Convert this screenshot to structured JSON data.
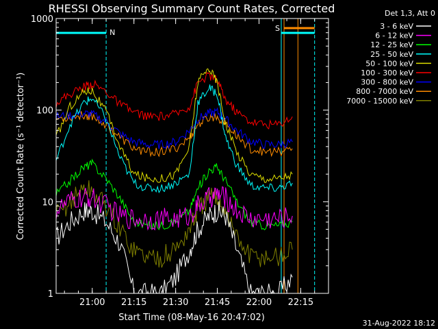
{
  "chart_data": {
    "type": "line",
    "title": "RHESSI Observing Summary Count Rates, Corrected",
    "xlabel": "Start Time (08-May-16 20:47:02)",
    "ylabel": "Corrected Count Rate (s⁻¹ detector⁻¹)",
    "x_tick_labels": [
      "21:00",
      "21:15",
      "21:30",
      "21:45",
      "22:00",
      "22:15"
    ],
    "y_tick_labels": [
      "1",
      "10",
      "100",
      "1000"
    ],
    "ylim": [
      1,
      1000
    ],
    "yscale": "log",
    "xlim": [
      "20:47",
      "22:25"
    ],
    "timestamp": "31-Aug-2022 18:12",
    "legend_header": "Det 1,3, Att 0",
    "legend_position": "right, outside plot",
    "annotations": [
      {
        "label": "N",
        "color": "#00ffff"
      },
      {
        "label": "S",
        "color": "#ff8c00"
      }
    ],
    "x_times": [
      "20:47",
      "20:52",
      "20:57",
      "21:00",
      "21:05",
      "21:10",
      "21:15",
      "21:20",
      "21:25",
      "21:30",
      "21:35",
      "21:38",
      "21:42",
      "21:45",
      "21:48",
      "21:52",
      "21:57",
      "22:02",
      "22:07",
      "22:12"
    ],
    "series": [
      {
        "name": "3 - 6 keV",
        "color": "#ffffff",
        "values": [
          4,
          6,
          8,
          8,
          6,
          3.5,
          1,
          1,
          1,
          1.5,
          3,
          5,
          7,
          8,
          7,
          3,
          1,
          1,
          1,
          1.5
        ]
      },
      {
        "name": "6 - 12 keV",
        "color": "#ff00ff",
        "values": [
          8,
          10,
          11,
          11,
          9,
          7,
          6.5,
          6.5,
          6.5,
          6.5,
          7,
          9,
          11,
          12,
          11,
          8,
          6.5,
          6.5,
          6.5,
          7
        ]
      },
      {
        "name": "12 - 25 keV",
        "color": "#00ff00",
        "values": [
          12,
          17,
          24,
          26,
          18,
          11,
          6,
          5.5,
          5.5,
          6,
          8,
          14,
          22,
          24,
          17,
          10,
          6,
          5.5,
          5.5,
          6
        ]
      },
      {
        "name": "25 - 50 keV",
        "color": "#00ffff",
        "values": [
          28,
          70,
          120,
          135,
          80,
          30,
          16,
          14,
          14,
          16,
          20,
          120,
          175,
          150,
          50,
          25,
          15,
          14,
          14,
          16
        ]
      },
      {
        "name": "50 - 100 keV",
        "color": "#dddd00",
        "values": [
          50,
          110,
          160,
          165,
          95,
          40,
          20,
          18,
          18,
          20,
          40,
          200,
          290,
          200,
          70,
          35,
          20,
          18,
          18,
          20
        ]
      },
      {
        "name": "100 - 300 keV",
        "color": "#ff0000",
        "values": [
          120,
          150,
          180,
          195,
          160,
          115,
          95,
          85,
          85,
          90,
          110,
          200,
          240,
          210,
          130,
          95,
          75,
          70,
          70,
          85
        ]
      },
      {
        "name": "300 - 800 keV",
        "color": "#0000ff",
        "values": [
          85,
          88,
          92,
          90,
          75,
          55,
          45,
          42,
          42,
          45,
          60,
          80,
          92,
          95,
          80,
          60,
          46,
          42,
          42,
          45
        ]
      },
      {
        "name": "800 - 7000 keV",
        "color": "#ff8c00",
        "values": [
          80,
          84,
          88,
          86,
          70,
          50,
          38,
          35,
          35,
          38,
          50,
          70,
          82,
          85,
          72,
          52,
          38,
          35,
          35,
          38
        ]
      },
      {
        "name": "7000 - 15000 keV",
        "color": "#808000",
        "values": [
          7,
          10,
          14,
          13,
          9,
          5,
          3,
          2.5,
          2.5,
          3,
          5,
          8,
          11,
          11,
          8,
          4,
          2.5,
          2.5,
          2.5,
          3
        ]
      }
    ]
  }
}
